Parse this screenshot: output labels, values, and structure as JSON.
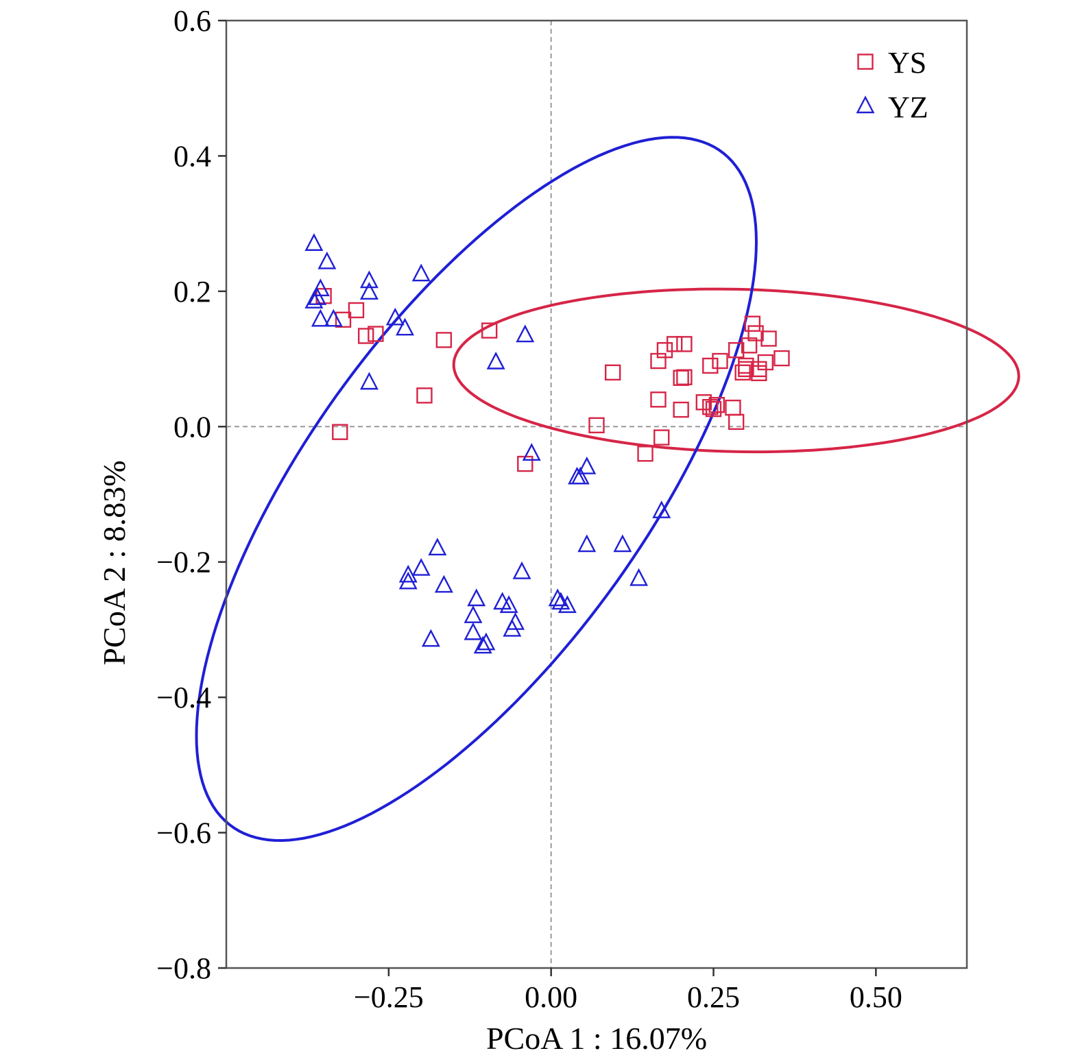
{
  "chart_data": {
    "type": "scatter",
    "title": "",
    "xlabel": "PCoA 1 : 16.07%",
    "ylabel": "PCoA 2 : 8.83%",
    "xlim": [
      -0.5,
      0.64
    ],
    "ylim": [
      -0.8,
      0.6
    ],
    "x_ticks": [
      -0.25,
      0.0,
      0.25,
      0.5
    ],
    "x_tick_labels": [
      "−0.25",
      "0.00",
      "0.25",
      "0.50"
    ],
    "y_ticks": [
      0.6,
      0.4,
      0.2,
      0.0,
      -0.2,
      -0.4,
      -0.6,
      -0.8
    ],
    "y_tick_labels": [
      "0.6",
      "0.4",
      "0.2",
      "0.0",
      "−0.2",
      "−0.4",
      "−0.6",
      "−0.8"
    ],
    "reference_lines": {
      "x": 0,
      "y": 0,
      "style": "dashed"
    },
    "legend_position": "top-right",
    "series": [
      {
        "name": "YS",
        "marker": "square",
        "color": "#d62547",
        "points": [
          [
            -0.35,
            0.193
          ],
          [
            -0.32,
            0.158
          ],
          [
            -0.3,
            0.172
          ],
          [
            -0.285,
            0.134
          ],
          [
            -0.27,
            0.137
          ],
          [
            -0.195,
            0.046
          ],
          [
            -0.165,
            0.128
          ],
          [
            -0.095,
            0.142
          ],
          [
            -0.325,
            -0.008
          ],
          [
            -0.04,
            -0.055
          ],
          [
            0.095,
            0.08
          ],
          [
            0.07,
            0.002
          ],
          [
            0.165,
            0.097
          ],
          [
            0.175,
            0.113
          ],
          [
            0.19,
            0.122
          ],
          [
            0.205,
            0.122
          ],
          [
            0.2,
            0.072
          ],
          [
            0.205,
            0.073
          ],
          [
            0.165,
            0.04
          ],
          [
            0.2,
            0.025
          ],
          [
            0.235,
            0.036
          ],
          [
            0.245,
            0.029
          ],
          [
            0.255,
            0.032
          ],
          [
            0.25,
            0.026
          ],
          [
            0.28,
            0.028
          ],
          [
            0.285,
            0.007
          ],
          [
            0.17,
            -0.016
          ],
          [
            0.145,
            -0.04
          ],
          [
            0.245,
            0.09
          ],
          [
            0.26,
            0.097
          ],
          [
            0.285,
            0.113
          ],
          [
            0.295,
            0.08
          ],
          [
            0.3,
            0.085
          ],
          [
            0.305,
            0.12
          ],
          [
            0.31,
            0.152
          ],
          [
            0.315,
            0.138
          ],
          [
            0.32,
            0.085
          ],
          [
            0.32,
            0.079
          ],
          [
            0.33,
            0.095
          ],
          [
            0.335,
            0.13
          ],
          [
            0.355,
            0.101
          ],
          [
            0.3,
            0.09
          ]
        ]
      },
      {
        "name": "YZ",
        "marker": "triangle",
        "color": "#1f1fd6",
        "points": [
          [
            -0.365,
            0.27
          ],
          [
            -0.345,
            0.243
          ],
          [
            -0.36,
            0.19
          ],
          [
            -0.355,
            0.203
          ],
          [
            -0.365,
            0.185
          ],
          [
            -0.355,
            0.158
          ],
          [
            -0.335,
            0.158
          ],
          [
            -0.28,
            0.215
          ],
          [
            -0.28,
            0.198
          ],
          [
            -0.28,
            0.065
          ],
          [
            -0.24,
            0.16
          ],
          [
            -0.225,
            0.145
          ],
          [
            -0.2,
            0.225
          ],
          [
            -0.085,
            0.095
          ],
          [
            -0.04,
            0.135
          ],
          [
            -0.03,
            -0.04
          ],
          [
            0.04,
            -0.075
          ],
          [
            0.045,
            -0.075
          ],
          [
            0.055,
            -0.06
          ],
          [
            0.17,
            -0.125
          ],
          [
            0.055,
            -0.175
          ],
          [
            0.11,
            -0.175
          ],
          [
            0.135,
            -0.225
          ],
          [
            -0.175,
            -0.18
          ],
          [
            -0.2,
            -0.21
          ],
          [
            -0.22,
            -0.22
          ],
          [
            -0.22,
            -0.23
          ],
          [
            -0.165,
            -0.235
          ],
          [
            -0.045,
            -0.215
          ],
          [
            -0.115,
            -0.255
          ],
          [
            -0.075,
            -0.26
          ],
          [
            -0.065,
            -0.265
          ],
          [
            -0.12,
            -0.28
          ],
          [
            -0.055,
            -0.29
          ],
          [
            -0.06,
            -0.3
          ],
          [
            -0.12,
            -0.305
          ],
          [
            -0.1,
            -0.32
          ],
          [
            -0.105,
            -0.325
          ],
          [
            -0.185,
            -0.315
          ],
          [
            0.01,
            -0.255
          ],
          [
            0.015,
            -0.26
          ],
          [
            0.025,
            -0.265
          ]
        ]
      }
    ],
    "ellipses": [
      {
        "series": "YS",
        "cx": 0.285,
        "cy": 0.083,
        "rx": 0.435,
        "ry": 0.12,
        "angle_deg": -1.2,
        "color": "#d62547"
      },
      {
        "series": "YZ",
        "cx": -0.115,
        "cy": -0.092,
        "rx": 0.625,
        "ry": 0.255,
        "angle_deg": 52.5,
        "color": "#1f1fd6"
      }
    ]
  }
}
